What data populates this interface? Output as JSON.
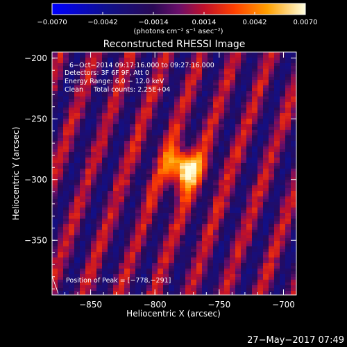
{
  "chart_data": {
    "type": "heatmap",
    "title": "Reconstructed RHESSI Image",
    "xlabel": "Heliocentric X (arcsec)",
    "ylabel": "Heliocentric Y (arcsec)",
    "xlim": [
      -880,
      -690
    ],
    "ylim": [
      -395,
      -195
    ],
    "x_ticks": [
      -850,
      -800,
      -750,
      -700
    ],
    "y_ticks": [
      -200,
      -250,
      -300,
      -350
    ],
    "x_tick_labels": [
      "−850",
      "−800",
      "−750",
      "−700"
    ],
    "y_tick_labels": [
      "−200",
      "−250",
      "−300",
      "−350"
    ],
    "colorbar": {
      "min": -0.007,
      "max": 0.007,
      "ticks": [
        -0.007,
        -0.0042,
        -0.0014,
        0.0014,
        0.0042,
        0.007
      ],
      "tick_labels": [
        "−0.0070",
        "−0.0042",
        "−0.0014",
        "0.0014",
        "0.0042",
        "0.0070"
      ],
      "units": "(photons cm⁻² s⁻¹ asec⁻²)"
    },
    "peak": {
      "x": -778,
      "y": -291
    },
    "annotations": [
      "6−Oct−2014 09:17:16.000 to 09:27:16.000",
      "Detectors: 3F 6F 9F, Att 0",
      "Energy Range: 6.0 − 12.0 keV",
      "Clean     Total counts: 2.25E+04",
      "Position of Peak = [−778,−291]"
    ]
  },
  "footer": {
    "timestamp": "27−May−2017 07:49"
  },
  "colors": {
    "background": "#000000",
    "text": "#ffffff"
  }
}
